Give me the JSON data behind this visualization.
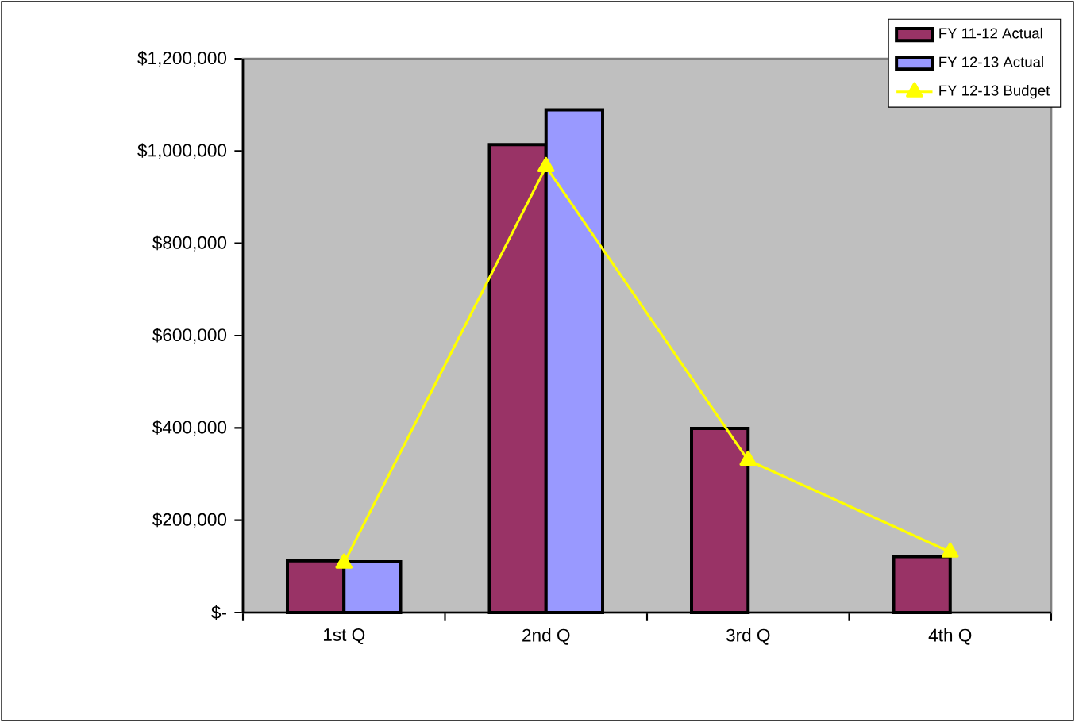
{
  "chart_data": {
    "type": "bar",
    "categories": [
      "1st Q",
      "2nd Q",
      "3rd Q",
      "4th Q"
    ],
    "series": [
      {
        "name": "FY 11-12 Actual",
        "color": "#993366",
        "values": [
          112000,
          1014000,
          399000,
          121000
        ]
      },
      {
        "name": "FY 12-13 Actual",
        "color": "#9999ff",
        "values": [
          110000,
          1089000,
          null,
          null
        ]
      },
      {
        "name": "FY 12-13 Budget",
        "type": "line",
        "color": "#ffff00",
        "marker": "triangle",
        "values": [
          107000,
          966000,
          330000,
          131000
        ]
      }
    ],
    "ylim": [
      0,
      1200000
    ],
    "yticks": [
      {
        "value": 0,
        "label": "$-"
      },
      {
        "value": 200000,
        "label": "$200,000"
      },
      {
        "value": 400000,
        "label": "$400,000"
      },
      {
        "value": 600000,
        "label": "$600,000"
      },
      {
        "value": 800000,
        "label": "$800,000"
      },
      {
        "value": 1000000,
        "label": "$1,000,000"
      },
      {
        "value": 1200000,
        "label": "$1,200,000"
      }
    ],
    "legend": "top right"
  }
}
